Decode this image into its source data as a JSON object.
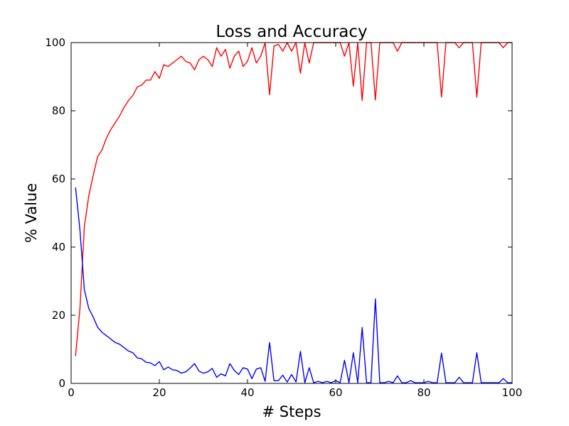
{
  "chart_data": {
    "type": "line",
    "title": "Loss and Accuracy",
    "xlabel": "# Steps",
    "ylabel": "% Value",
    "xlim": [
      0,
      100
    ],
    "ylim": [
      0,
      100
    ],
    "xticks": [
      "0",
      "20",
      "40",
      "60",
      "80",
      "100"
    ],
    "yticks": [
      "0",
      "20",
      "40",
      "60",
      "80",
      "100"
    ],
    "grid": false,
    "legend": "none",
    "x": [
      1,
      2,
      3,
      4,
      5,
      6,
      7,
      8,
      9,
      10,
      11,
      12,
      13,
      14,
      15,
      16,
      17,
      18,
      19,
      20,
      21,
      22,
      23,
      24,
      25,
      26,
      27,
      28,
      29,
      30,
      31,
      32,
      33,
      34,
      35,
      36,
      37,
      38,
      39,
      40,
      41,
      42,
      43,
      44,
      45,
      46,
      47,
      48,
      49,
      50,
      51,
      52,
      53,
      54,
      55,
      56,
      57,
      58,
      59,
      60,
      61,
      62,
      63,
      64,
      65,
      66,
      67,
      68,
      69,
      70,
      71,
      72,
      73,
      74,
      75,
      76,
      77,
      78,
      79,
      80,
      81,
      82,
      83,
      84,
      85,
      86,
      87,
      88,
      89,
      90,
      91,
      92,
      93,
      94,
      95,
      96,
      97,
      98,
      99,
      100
    ],
    "series": [
      {
        "color": "#ff0000",
        "values": [
          8,
          22,
          46,
          55,
          61,
          66.5,
          68.5,
          72,
          74.5,
          76.5,
          78.5,
          81,
          83,
          84.5,
          87,
          87.5,
          89,
          89,
          91.5,
          89.5,
          93.5,
          93,
          94,
          95,
          96,
          94.5,
          94,
          92,
          95,
          96,
          95,
          93,
          98.5,
          96,
          98,
          92.5,
          96,
          97.5,
          93,
          94.5,
          98.5,
          94,
          96,
          100,
          84.7,
          99,
          99.5,
          97.5,
          100,
          97.5,
          100,
          91,
          100,
          94,
          100,
          100,
          100,
          100,
          100,
          100,
          100,
          96,
          100,
          87.2,
          100,
          83,
          100,
          100,
          83.2,
          100,
          100,
          100,
          100,
          97.5,
          100,
          100,
          100,
          100,
          100,
          100,
          100,
          100,
          100,
          84,
          100,
          100,
          100,
          98.5,
          100,
          100,
          100,
          84,
          100,
          100,
          100,
          100,
          100,
          98.5,
          100,
          100
        ]
      },
      {
        "color": "#0000ff",
        "values": [
          57.5,
          45,
          27.5,
          22,
          19.5,
          16.5,
          15,
          14,
          13,
          12,
          11.5,
          10.5,
          9.5,
          9,
          7.5,
          7.2,
          6.2,
          6,
          5.2,
          6.4,
          4,
          4.8,
          4,
          3.8,
          3,
          3.4,
          4.5,
          5.8,
          3.6,
          3,
          3.4,
          4.4,
          1.8,
          2.8,
          2.2,
          5.8,
          3.8,
          2.6,
          4.6,
          4.2,
          1.4,
          4.2,
          4.6,
          0.6,
          12,
          0.8,
          0.8,
          2.4,
          0.4,
          2.6,
          0.4,
          9.4,
          0.2,
          4.6,
          0.2,
          0.6,
          0.2,
          0.6,
          0.2,
          0.8,
          0.2,
          6.8,
          0.2,
          9,
          0.2,
          16.4,
          0.2,
          0.2,
          24.8,
          0.2,
          0.2,
          0.6,
          0.2,
          2.2,
          0.2,
          0.2,
          0.8,
          0.2,
          0.2,
          0.2,
          0.6,
          0.2,
          0.2,
          8.9,
          0.2,
          0.2,
          0.2,
          1.8,
          0.2,
          0.2,
          0.2,
          9,
          0.2,
          0.2,
          0.2,
          0.2,
          0.2,
          1.4,
          0.2,
          0.2
        ]
      }
    ]
  }
}
